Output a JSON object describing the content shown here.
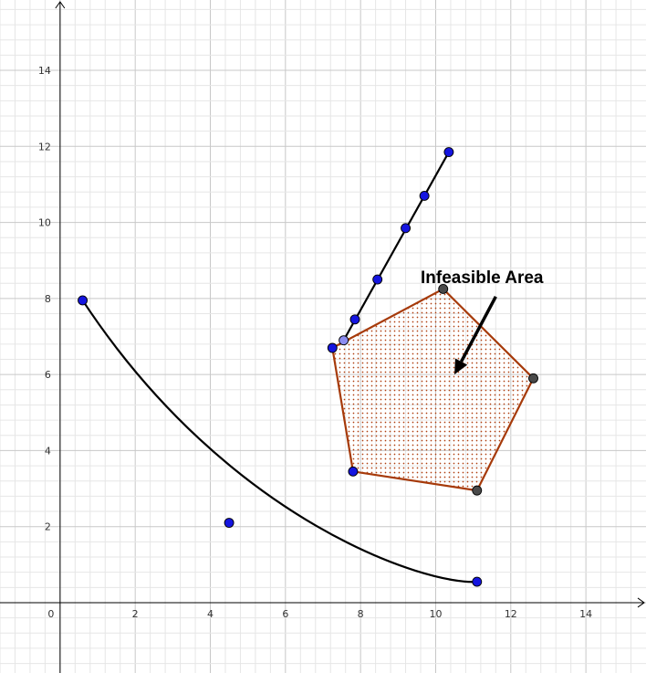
{
  "chart_data": {
    "type": "scatter",
    "xlim": [
      -1.6,
      15.6
    ],
    "ylim": [
      -1.85,
      15.85
    ],
    "grid": true,
    "minor_grid_step": 0.4,
    "major_grid_step": 2,
    "x_ticks": [
      0,
      2,
      4,
      6,
      8,
      10,
      12,
      14
    ],
    "y_ticks": [
      2,
      4,
      6,
      8,
      10,
      12,
      14
    ],
    "origin_label": "0",
    "colors": {
      "point_blue": "#1515e0",
      "point_gray": "#4a4a4a",
      "point_lightblue": "#8c8cf0",
      "polygon_edge": "#a63a0a",
      "polygon_hatch": "#b04010",
      "curve": "#000000",
      "grid_minor": "#e6e6e6",
      "grid_major": "#c8c8c8"
    },
    "curve": {
      "control_points": [
        [
          0.6,
          7.95
        ],
        [
          4.5,
          2.1
        ],
        [
          9.8,
          0.45
        ],
        [
          11.1,
          0.55
        ]
      ],
      "points": [
        [
          0.6,
          7.95
        ],
        [
          4.5,
          2.1
        ],
        [
          11.1,
          0.55
        ]
      ]
    },
    "line": {
      "from": [
        7.55,
        6.9
      ],
      "to": [
        10.35,
        11.85
      ],
      "points": [
        [
          7.85,
          7.45
        ],
        [
          8.45,
          8.5
        ],
        [
          9.2,
          9.85
        ],
        [
          9.7,
          10.7
        ],
        [
          10.35,
          11.85
        ]
      ],
      "intersection": [
        7.55,
        6.9
      ]
    },
    "polygon": {
      "vertices": [
        [
          7.25,
          6.7
        ],
        [
          10.2,
          8.25
        ],
        [
          12.6,
          5.9
        ],
        [
          11.1,
          2.95
        ],
        [
          7.8,
          3.45
        ]
      ],
      "blue_vertices": [
        [
          7.25,
          6.7
        ],
        [
          7.8,
          3.45
        ]
      ],
      "gray_vertices": [
        [
          10.2,
          8.25
        ],
        [
          12.6,
          5.9
        ],
        [
          11.1,
          2.95
        ]
      ]
    },
    "annotation": {
      "text": "Infeasible Area",
      "text_anchor": [
        9.6,
        8.4
      ],
      "arrow_from": [
        11.6,
        8.05
      ],
      "arrow_to": [
        10.5,
        6.0
      ]
    }
  }
}
